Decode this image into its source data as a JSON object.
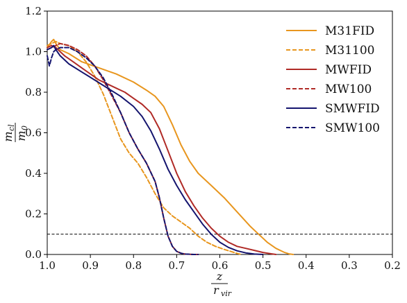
{
  "chart_data": {
    "type": "line",
    "xlabel_num": "z",
    "xlabel_den": "r",
    "xlabel_den_sub": "vir",
    "ylabel_num": "m",
    "ylabel_num_sub": "cl",
    "ylabel_den": "m",
    "ylabel_den_sub": "0",
    "xlim": [
      1.0,
      0.2
    ],
    "ylim": [
      0.0,
      1.2
    ],
    "xticks": [
      1.0,
      0.9,
      0.8,
      0.7,
      0.6,
      0.5,
      0.4,
      0.3,
      0.2
    ],
    "xtick_labels": [
      "1.0",
      "0.9",
      "0.8",
      "0.7",
      "0.6",
      "0.5",
      "0.4",
      "0.3",
      "0.2"
    ],
    "yticks": [
      0.0,
      0.2,
      0.4,
      0.6,
      0.8,
      1.0,
      1.2
    ],
    "ytick_labels": [
      "0.0",
      "0.2",
      "0.4",
      "0.6",
      "0.8",
      "1.0",
      "1.2"
    ],
    "threshold_line": {
      "y": 0.1,
      "color": "#000000",
      "dash": "dashed"
    },
    "legend_position": "top-right",
    "grid": false,
    "series": [
      {
        "name": "M31FID",
        "color": "#e8961e",
        "dash": "solid",
        "x": [
          1.0,
          0.99,
          0.985,
          0.98,
          0.97,
          0.95,
          0.92,
          0.88,
          0.84,
          0.8,
          0.77,
          0.75,
          0.73,
          0.71,
          0.69,
          0.67,
          0.65,
          0.62,
          0.59,
          0.56,
          0.53,
          0.51,
          0.49,
          0.47,
          0.45,
          0.44,
          0.43
        ],
        "y": [
          1.02,
          1.05,
          1.06,
          1.04,
          1.01,
          0.99,
          0.95,
          0.92,
          0.89,
          0.85,
          0.81,
          0.78,
          0.73,
          0.64,
          0.54,
          0.46,
          0.4,
          0.34,
          0.28,
          0.21,
          0.14,
          0.1,
          0.06,
          0.03,
          0.01,
          0.003,
          0.0
        ]
      },
      {
        "name": "M31100",
        "color": "#e8961e",
        "dash": "dashed",
        "x": [
          1.0,
          0.99,
          0.98,
          0.97,
          0.95,
          0.93,
          0.91,
          0.89,
          0.87,
          0.85,
          0.83,
          0.81,
          0.79,
          0.77,
          0.75,
          0.73,
          0.71,
          0.69,
          0.67,
          0.65,
          0.63,
          0.61,
          0.59,
          0.57,
          0.56,
          0.55
        ],
        "y": [
          1.03,
          1.04,
          1.05,
          1.04,
          1.03,
          1.0,
          0.95,
          0.88,
          0.79,
          0.68,
          0.57,
          0.5,
          0.45,
          0.38,
          0.3,
          0.23,
          0.19,
          0.16,
          0.13,
          0.09,
          0.06,
          0.04,
          0.025,
          0.012,
          0.005,
          0.0
        ]
      },
      {
        "name": "MWFID",
        "color": "#b02a26",
        "dash": "solid",
        "x": [
          1.0,
          0.99,
          0.98,
          0.97,
          0.96,
          0.94,
          0.92,
          0.9,
          0.88,
          0.86,
          0.84,
          0.82,
          0.8,
          0.78,
          0.76,
          0.74,
          0.72,
          0.7,
          0.68,
          0.66,
          0.64,
          0.62,
          0.6,
          0.58,
          0.56,
          0.54,
          0.52,
          0.5,
          0.48,
          0.47
        ],
        "y": [
          1.02,
          1.03,
          1.02,
          1.0,
          0.98,
          0.95,
          0.92,
          0.89,
          0.86,
          0.84,
          0.82,
          0.8,
          0.77,
          0.74,
          0.7,
          0.62,
          0.51,
          0.4,
          0.31,
          0.24,
          0.18,
          0.13,
          0.09,
          0.06,
          0.04,
          0.03,
          0.02,
          0.01,
          0.003,
          0.0
        ]
      },
      {
        "name": "MW100",
        "color": "#b02a26",
        "dash": "dashed",
        "x": [
          1.0,
          0.99,
          0.98,
          0.97,
          0.95,
          0.93,
          0.91,
          0.89,
          0.87,
          0.85,
          0.83,
          0.81,
          0.79,
          0.77,
          0.75,
          0.74,
          0.73,
          0.72,
          0.71,
          0.7,
          0.69,
          0.68,
          0.67,
          0.66,
          0.65
        ],
        "y": [
          1.01,
          1.02,
          1.03,
          1.04,
          1.03,
          1.01,
          0.98,
          0.93,
          0.86,
          0.78,
          0.7,
          0.6,
          0.52,
          0.45,
          0.36,
          0.28,
          0.18,
          0.09,
          0.04,
          0.015,
          0.006,
          0.002,
          0.001,
          0.0,
          0.0
        ]
      },
      {
        "name": "SMWFID",
        "color": "#14146e",
        "dash": "solid",
        "x": [
          1.0,
          0.99,
          0.985,
          0.98,
          0.97,
          0.95,
          0.92,
          0.89,
          0.86,
          0.83,
          0.8,
          0.78,
          0.76,
          0.74,
          0.72,
          0.7,
          0.68,
          0.66,
          0.64,
          0.62,
          0.6,
          0.58,
          0.56,
          0.54,
          0.52,
          0.5
        ],
        "y": [
          1.01,
          1.02,
          1.03,
          1.01,
          0.98,
          0.94,
          0.9,
          0.86,
          0.82,
          0.78,
          0.73,
          0.68,
          0.61,
          0.52,
          0.42,
          0.34,
          0.27,
          0.21,
          0.15,
          0.1,
          0.06,
          0.035,
          0.018,
          0.008,
          0.002,
          0.0
        ]
      },
      {
        "name": "SMW100",
        "color": "#14146e",
        "dash": "dashed",
        "x": [
          1.0,
          0.995,
          0.99,
          0.985,
          0.98,
          0.97,
          0.95,
          0.93,
          0.91,
          0.89,
          0.87,
          0.85,
          0.83,
          0.81,
          0.79,
          0.77,
          0.75,
          0.74,
          0.73,
          0.72,
          0.71,
          0.7,
          0.69,
          0.68,
          0.67,
          0.66,
          0.65
        ],
        "y": [
          0.98,
          0.93,
          0.97,
          1.0,
          1.01,
          1.02,
          1.02,
          1.0,
          0.97,
          0.93,
          0.87,
          0.79,
          0.7,
          0.6,
          0.52,
          0.45,
          0.36,
          0.28,
          0.18,
          0.09,
          0.04,
          0.015,
          0.006,
          0.002,
          0.001,
          0.0,
          0.0
        ]
      }
    ]
  }
}
